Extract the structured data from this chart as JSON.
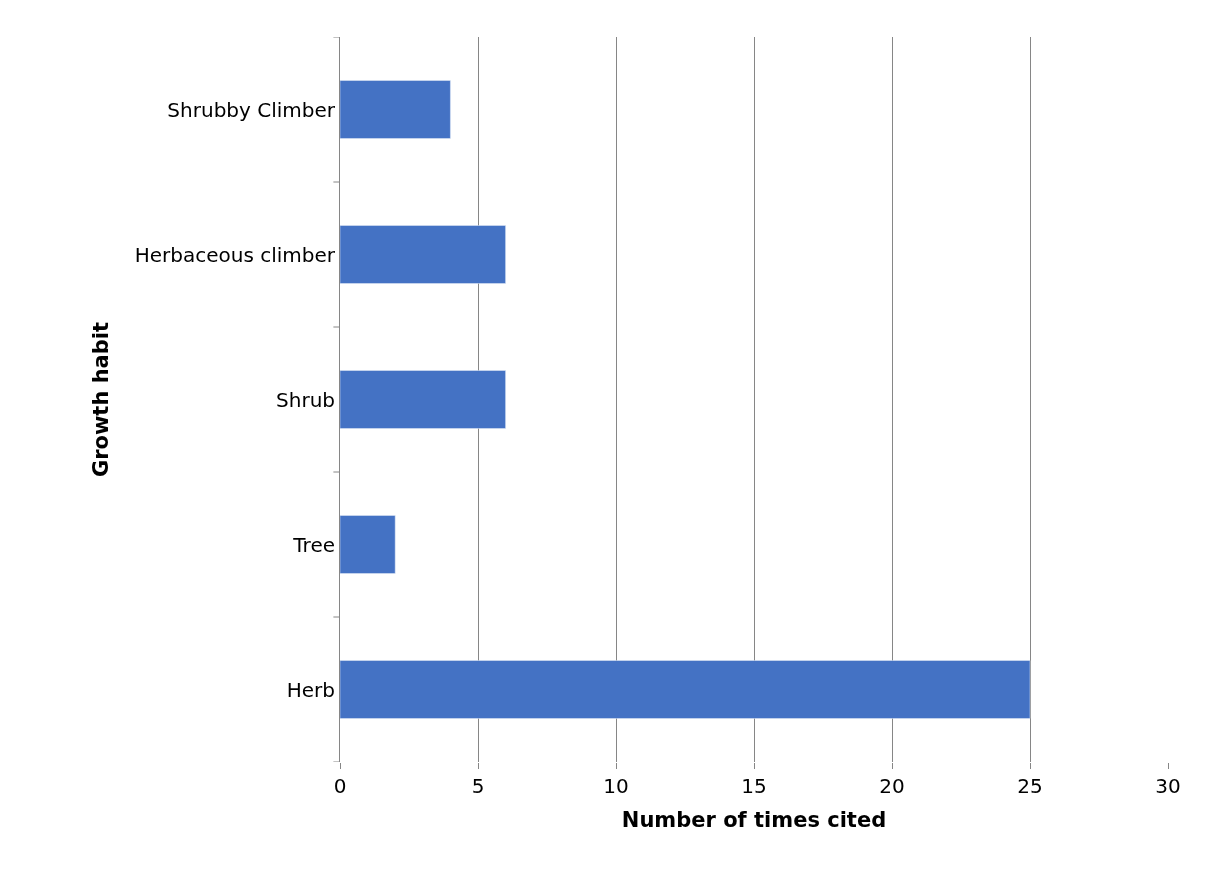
{
  "chart_data": {
    "type": "bar",
    "orientation": "horizontal",
    "xlabel": "Number of times cited",
    "ylabel": "Growth habit",
    "categories": [
      "Shrubby Climber",
      "Herbaceous climber",
      "Shrub",
      "Tree",
      "Herb"
    ],
    "values": [
      4,
      6,
      6,
      2,
      25
    ],
    "color": "#4472c4",
    "xlim": [
      0,
      30
    ],
    "xticks": [
      0,
      5,
      10,
      15,
      20,
      25,
      30
    ],
    "grid": "x",
    "legend": false
  }
}
